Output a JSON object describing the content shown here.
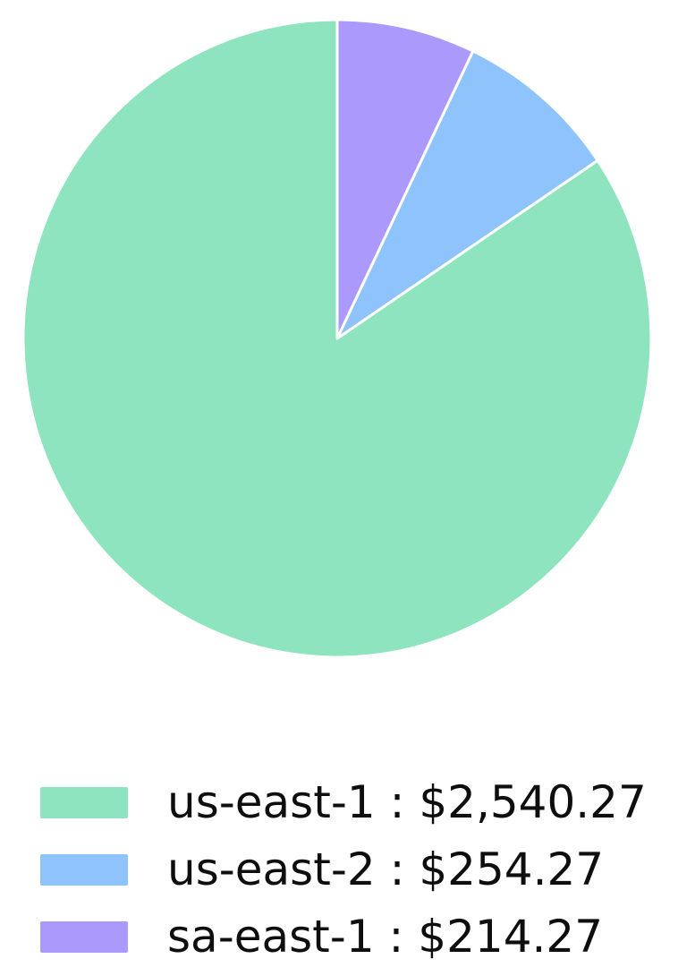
{
  "chart_data": {
    "type": "pie",
    "title": "",
    "slices": [
      {
        "label": "us-east-1",
        "value": 2540.27,
        "display": "us-east-1 : $2,540.27",
        "color": "#8EE4BF",
        "percent": 84.4
      },
      {
        "label": "us-east-2",
        "value": 254.27,
        "display": "us-east-2 : $254.27",
        "color": "#8FC3FC",
        "percent": 8.5
      },
      {
        "label": "sa-east-1",
        "value": 214.27,
        "display": "sa-east-1 : $214.27",
        "color": "#AC99FC",
        "percent": 7.1
      }
    ],
    "start_angle_deg": 90,
    "direction": "counterclockwise",
    "edge_color": "#FFFFFF",
    "background": "#FFFFFF",
    "text_color": "#0E0E0E",
    "legend_position": "bottom-left"
  }
}
